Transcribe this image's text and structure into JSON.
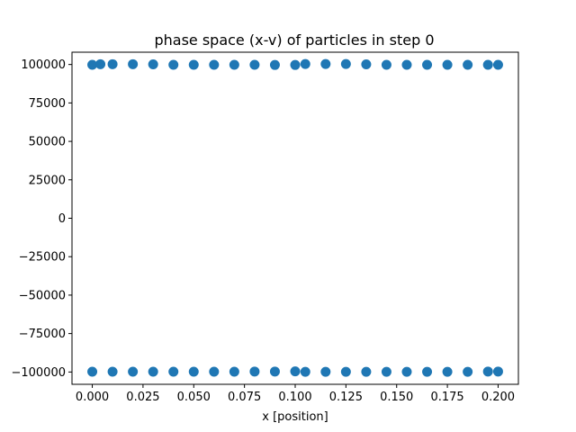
{
  "chart_data": {
    "type": "scatter",
    "title": "phase space (x-v) of particles in step 0",
    "xlabel": "x [position]",
    "ylabel": "",
    "xlim": [
      -0.01,
      0.21
    ],
    "ylim": [
      -108000,
      108000
    ],
    "xticks": [
      0.0,
      0.025,
      0.05,
      0.075,
      0.1,
      0.125,
      0.15,
      0.175,
      0.2
    ],
    "xtick_labels": [
      "0.000",
      "0.025",
      "0.050",
      "0.075",
      "0.100",
      "0.125",
      "0.150",
      "0.175",
      "0.200"
    ],
    "yticks": [
      100000,
      75000,
      50000,
      25000,
      0,
      -25000,
      -50000,
      -75000,
      -100000
    ],
    "ytick_labels": [
      "100000",
      "75000",
      "50000",
      "25000",
      "0",
      "−25000",
      "−50000",
      "−75000",
      "−100000"
    ],
    "grid": false,
    "legend": "none",
    "marker_color": "#1f77b4",
    "series": [
      {
        "values_description_note": "",
        "points": [
          [
            0.0,
            99800
          ],
          [
            0.004,
            100200
          ],
          [
            0.01,
            100200
          ],
          [
            0.02,
            100200
          ],
          [
            0.03,
            100100
          ],
          [
            0.04,
            99800
          ],
          [
            0.05,
            99800
          ],
          [
            0.06,
            99800
          ],
          [
            0.07,
            99800
          ],
          [
            0.08,
            99800
          ],
          [
            0.09,
            99700
          ],
          [
            0.1,
            99700
          ],
          [
            0.105,
            100300
          ],
          [
            0.115,
            100300
          ],
          [
            0.125,
            100300
          ],
          [
            0.135,
            100100
          ],
          [
            0.145,
            99800
          ],
          [
            0.155,
            99800
          ],
          [
            0.165,
            99800
          ],
          [
            0.175,
            99800
          ],
          [
            0.185,
            99800
          ],
          [
            0.195,
            99800
          ],
          [
            0.2,
            99800
          ],
          [
            0.0,
            -99800
          ],
          [
            0.01,
            -99800
          ],
          [
            0.02,
            -99800
          ],
          [
            0.03,
            -99800
          ],
          [
            0.04,
            -99800
          ],
          [
            0.05,
            -99800
          ],
          [
            0.06,
            -99800
          ],
          [
            0.07,
            -99800
          ],
          [
            0.08,
            -99700
          ],
          [
            0.09,
            -99700
          ],
          [
            0.1,
            -99600
          ],
          [
            0.105,
            -99900
          ],
          [
            0.115,
            -99900
          ],
          [
            0.125,
            -99900
          ],
          [
            0.135,
            -99900
          ],
          [
            0.145,
            -99900
          ],
          [
            0.155,
            -99900
          ],
          [
            0.165,
            -99900
          ],
          [
            0.175,
            -99900
          ],
          [
            0.185,
            -99900
          ],
          [
            0.195,
            -99700
          ],
          [
            0.2,
            -99700
          ]
        ]
      }
    ]
  }
}
